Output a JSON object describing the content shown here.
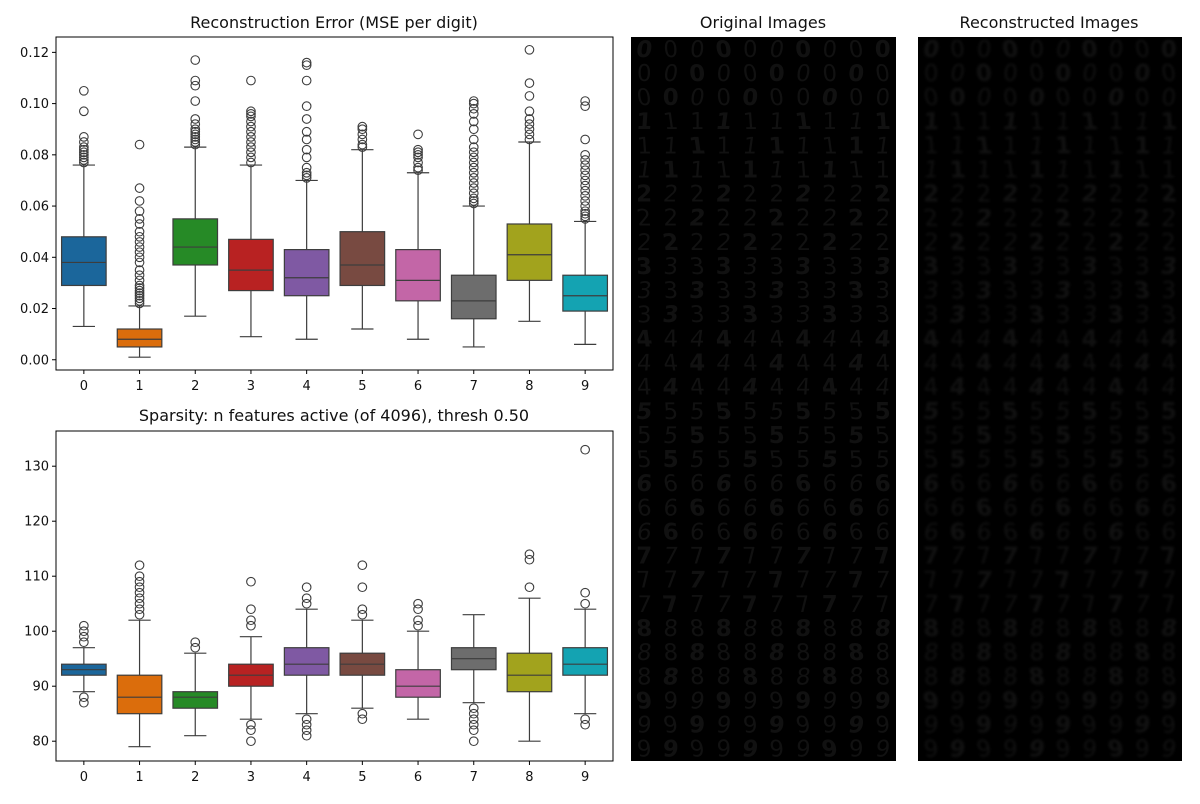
{
  "chart_data": [
    {
      "type": "boxplot",
      "title": "Reconstruction Error (MSE per digit)",
      "categories": [
        "0",
        "1",
        "2",
        "3",
        "4",
        "5",
        "6",
        "7",
        "8",
        "9"
      ],
      "ylim": [
        -0.004,
        0.126
      ],
      "yticks": [
        0.0,
        0.02,
        0.04,
        0.06,
        0.08,
        0.1,
        0.12
      ],
      "ytick_labels": [
        "0.00",
        "0.02",
        "0.04",
        "0.06",
        "0.08",
        "0.10",
        "0.12"
      ],
      "boxes": [
        {
          "label": "0",
          "color": "#1f77b4",
          "min": 0.013,
          "q1": 0.029,
          "median": 0.038,
          "q3": 0.048,
          "max": 0.076,
          "outliers": [
            0.077,
            0.078,
            0.079,
            0.08,
            0.081,
            0.082,
            0.083,
            0.085,
            0.087,
            0.097,
            0.105
          ]
        },
        {
          "label": "1",
          "color": "#ff7f0e",
          "min": 0.001,
          "q1": 0.005,
          "median": 0.008,
          "q3": 0.012,
          "max": 0.021,
          "outliers": [
            0.022,
            0.023,
            0.024,
            0.025,
            0.026,
            0.027,
            0.028,
            0.029,
            0.031,
            0.033,
            0.035,
            0.038,
            0.04,
            0.042,
            0.044,
            0.046,
            0.048,
            0.05,
            0.053,
            0.055,
            0.058,
            0.062,
            0.067,
            0.084
          ]
        },
        {
          "label": "2",
          "color": "#2ca02c",
          "min": 0.017,
          "q1": 0.037,
          "median": 0.044,
          "q3": 0.055,
          "max": 0.083,
          "outliers": [
            0.084,
            0.085,
            0.086,
            0.087,
            0.088,
            0.089,
            0.09,
            0.092,
            0.094,
            0.101,
            0.107,
            0.109,
            0.117
          ]
        },
        {
          "label": "3",
          "color": "#d62728",
          "min": 0.009,
          "q1": 0.027,
          "median": 0.035,
          "q3": 0.047,
          "max": 0.076,
          "outliers": [
            0.077,
            0.079,
            0.081,
            0.083,
            0.085,
            0.087,
            0.089,
            0.091,
            0.093,
            0.095,
            0.096,
            0.097,
            0.109
          ]
        },
        {
          "label": "4",
          "color": "#9467bd",
          "min": 0.008,
          "q1": 0.025,
          "median": 0.032,
          "q3": 0.043,
          "max": 0.07,
          "outliers": [
            0.071,
            0.072,
            0.073,
            0.075,
            0.079,
            0.082,
            0.086,
            0.089,
            0.094,
            0.099,
            0.109,
            0.115,
            0.116
          ]
        },
        {
          "label": "5",
          "color": "#8c564b",
          "min": 0.012,
          "q1": 0.029,
          "median": 0.037,
          "q3": 0.05,
          "max": 0.082,
          "outliers": [
            0.083,
            0.084,
            0.086,
            0.088,
            0.09,
            0.091
          ]
        },
        {
          "label": "6",
          "color": "#e377c2",
          "min": 0.008,
          "q1": 0.023,
          "median": 0.031,
          "q3": 0.043,
          "max": 0.073,
          "outliers": [
            0.074,
            0.075,
            0.077,
            0.079,
            0.08,
            0.081,
            0.082,
            0.088
          ]
        },
        {
          "label": "7",
          "color": "#7f7f7f",
          "min": 0.005,
          "q1": 0.016,
          "median": 0.023,
          "q3": 0.033,
          "max": 0.06,
          "outliers": [
            0.061,
            0.062,
            0.063,
            0.065,
            0.067,
            0.069,
            0.071,
            0.073,
            0.075,
            0.077,
            0.079,
            0.081,
            0.083,
            0.086,
            0.09,
            0.093,
            0.096,
            0.098,
            0.1,
            0.101
          ]
        },
        {
          "label": "8",
          "color": "#bcbd22",
          "min": 0.015,
          "q1": 0.031,
          "median": 0.041,
          "q3": 0.053,
          "max": 0.085,
          "outliers": [
            0.086,
            0.088,
            0.09,
            0.092,
            0.094,
            0.097,
            0.103,
            0.108,
            0.121
          ]
        },
        {
          "label": "9",
          "color": "#17becf",
          "min": 0.006,
          "q1": 0.019,
          "median": 0.025,
          "q3": 0.033,
          "max": 0.054,
          "outliers": [
            0.055,
            0.056,
            0.057,
            0.058,
            0.06,
            0.062,
            0.064,
            0.066,
            0.068,
            0.07,
            0.072,
            0.074,
            0.076,
            0.078,
            0.08,
            0.086,
            0.099,
            0.101
          ]
        }
      ]
    },
    {
      "type": "boxplot",
      "title": "Sparsity: n features active (of 4096), thresh 0.50",
      "categories": [
        "0",
        "1",
        "2",
        "3",
        "4",
        "5",
        "6",
        "7",
        "8",
        "9"
      ],
      "ylim": [
        76.4,
        136.4
      ],
      "yticks": [
        80,
        90,
        100,
        110,
        120,
        130
      ],
      "ytick_labels": [
        "80",
        "90",
        "100",
        "110",
        "120",
        "130"
      ],
      "boxes": [
        {
          "label": "0",
          "color": "#1f77b4",
          "min": 89,
          "q1": 92,
          "median": 93,
          "q3": 94,
          "max": 97,
          "outliers": [
            87,
            88,
            98,
            99,
            100,
            101
          ]
        },
        {
          "label": "1",
          "color": "#ff7f0e",
          "min": 79,
          "q1": 85,
          "median": 88,
          "q3": 92,
          "max": 102,
          "outliers": [
            103,
            104,
            105,
            106,
            107,
            108,
            109,
            110,
            112
          ]
        },
        {
          "label": "2",
          "color": "#2ca02c",
          "min": 81,
          "q1": 86,
          "median": 88,
          "q3": 89,
          "max": 96,
          "outliers": [
            97,
            98
          ]
        },
        {
          "label": "3",
          "color": "#d62728",
          "min": 84,
          "q1": 90,
          "median": 92,
          "q3": 94,
          "max": 99,
          "outliers": [
            80,
            82,
            83,
            101,
            102,
            104,
            109
          ]
        },
        {
          "label": "4",
          "color": "#9467bd",
          "min": 85,
          "q1": 92,
          "median": 94,
          "q3": 97,
          "max": 104,
          "outliers": [
            81,
            82,
            83,
            84,
            105,
            106,
            108
          ]
        },
        {
          "label": "5",
          "color": "#8c564b",
          "min": 86,
          "q1": 92,
          "median": 94,
          "q3": 96,
          "max": 102,
          "outliers": [
            84,
            85,
            103,
            104,
            108,
            112
          ]
        },
        {
          "label": "6",
          "color": "#e377c2",
          "min": 84,
          "q1": 88,
          "median": 90,
          "q3": 93,
          "max": 100,
          "outliers": [
            101,
            102,
            104,
            105
          ]
        },
        {
          "label": "7",
          "color": "#7f7f7f",
          "min": 87,
          "q1": 93,
          "median": 95,
          "q3": 97,
          "max": 103,
          "outliers": [
            80,
            82,
            83,
            84,
            85,
            86
          ]
        },
        {
          "label": "8",
          "color": "#bcbd22",
          "min": 80,
          "q1": 89,
          "median": 92,
          "q3": 96,
          "max": 106,
          "outliers": [
            108,
            113,
            114
          ]
        },
        {
          "label": "9",
          "color": "#17becf",
          "min": 85,
          "q1": 92,
          "median": 94,
          "q3": 97,
          "max": 104,
          "outliers": [
            83,
            84,
            105,
            107,
            133
          ]
        }
      ]
    }
  ],
  "image_panels": [
    {
      "title": "Original Images"
    },
    {
      "title": "Reconstructed Images"
    }
  ],
  "digit_grid": {
    "columns": 10,
    "rows": [
      [
        "0",
        "0",
        "0",
        "0",
        "0",
        "0",
        "0",
        "0",
        "0",
        "0"
      ],
      [
        "0",
        "0",
        "0",
        "0",
        "0",
        "0",
        "0",
        "0",
        "0",
        "0"
      ],
      [
        "0",
        "0",
        "0",
        "0",
        "0",
        "0",
        "0",
        "0",
        "0",
        "0"
      ],
      [
        "1",
        "1",
        "1",
        "1",
        "1",
        "1",
        "1",
        "1",
        "1",
        "1"
      ],
      [
        "1",
        "1",
        "1",
        "1",
        "1",
        "1",
        "1",
        "1",
        "1",
        "1"
      ],
      [
        "1",
        "1",
        "1",
        "1",
        "1",
        "1",
        "1",
        "1",
        "1",
        "1"
      ],
      [
        "2",
        "2",
        "2",
        "2",
        "2",
        "2",
        "2",
        "2",
        "2",
        "2"
      ],
      [
        "2",
        "2",
        "2",
        "2",
        "2",
        "2",
        "2",
        "2",
        "2",
        "2"
      ],
      [
        "2",
        "2",
        "2",
        "2",
        "2",
        "2",
        "2",
        "2",
        "2",
        "2"
      ],
      [
        "3",
        "3",
        "3",
        "3",
        "3",
        "3",
        "3",
        "3",
        "3",
        "3"
      ],
      [
        "3",
        "3",
        "3",
        "3",
        "3",
        "3",
        "3",
        "3",
        "3",
        "3"
      ],
      [
        "3",
        "3",
        "3",
        "3",
        "3",
        "3",
        "3",
        "3",
        "3",
        "3"
      ],
      [
        "4",
        "4",
        "4",
        "4",
        "4",
        "4",
        "4",
        "4",
        "4",
        "4"
      ],
      [
        "4",
        "4",
        "4",
        "4",
        "4",
        "4",
        "4",
        "4",
        "4",
        "4"
      ],
      [
        "4",
        "4",
        "4",
        "4",
        "4",
        "4",
        "4",
        "4",
        "4",
        "4"
      ],
      [
        "5",
        "5",
        "5",
        "5",
        "5",
        "5",
        "5",
        "5",
        "5",
        "5"
      ],
      [
        "5",
        "5",
        "5",
        "5",
        "5",
        "5",
        "5",
        "5",
        "5",
        "5"
      ],
      [
        "5",
        "5",
        "5",
        "5",
        "5",
        "5",
        "5",
        "5",
        "5",
        "5"
      ],
      [
        "6",
        "6",
        "6",
        "6",
        "6",
        "6",
        "6",
        "6",
        "6",
        "6"
      ],
      [
        "6",
        "6",
        "6",
        "6",
        "6",
        "6",
        "6",
        "6",
        "6",
        "6"
      ],
      [
        "6",
        "6",
        "6",
        "6",
        "6",
        "6",
        "6",
        "6",
        "6",
        "6"
      ],
      [
        "7",
        "7",
        "7",
        "7",
        "7",
        "7",
        "7",
        "7",
        "7",
        "7"
      ],
      [
        "7",
        "7",
        "7",
        "7",
        "7",
        "7",
        "7",
        "7",
        "7",
        "7"
      ],
      [
        "7",
        "7",
        "7",
        "7",
        "7",
        "7",
        "7",
        "7",
        "7",
        "7"
      ],
      [
        "8",
        "8",
        "8",
        "8",
        "8",
        "8",
        "8",
        "8",
        "8",
        "8"
      ],
      [
        "8",
        "8",
        "8",
        "8",
        "8",
        "8",
        "8",
        "8",
        "8",
        "8"
      ],
      [
        "8",
        "8",
        "8",
        "8",
        "8",
        "8",
        "8",
        "8",
        "8",
        "8"
      ],
      [
        "9",
        "9",
        "9",
        "9",
        "9",
        "9",
        "9",
        "9",
        "9",
        "9"
      ],
      [
        "9",
        "9",
        "9",
        "9",
        "9",
        "9",
        "9",
        "9",
        "9",
        "9"
      ],
      [
        "9",
        "9",
        "9",
        "9",
        "9",
        "9",
        "9",
        "9",
        "9",
        "9"
      ]
    ]
  }
}
